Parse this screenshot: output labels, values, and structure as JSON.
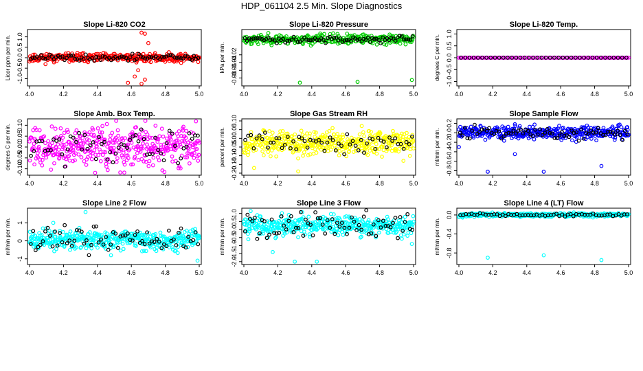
{
  "page_title": "HDP_061104  2.5 Min. Slope Diagnostics",
  "chart_data": [
    {
      "type": "scatter",
      "title": "Slope Li-820 CO2",
      "ylabel": "Licor ppm per min.",
      "xlim": [
        4.0,
        5.0
      ],
      "xticks": [
        "4.0",
        "4.2",
        "4.4",
        "4.6",
        "4.8",
        "5.0"
      ],
      "ylim": [
        -1.25,
        1.25
      ],
      "yticks": [
        "-1.0",
        "-0.5",
        "0.0",
        "0.5",
        "1.0"
      ],
      "ytick_values": [
        -1,
        -0.5,
        0,
        0.5,
        1
      ],
      "color": "#ff0000",
      "center": 0.0,
      "spread": 0.1,
      "black_spread": 0.08,
      "count": 320,
      "black_count": 80,
      "seed": 11,
      "outliers": [
        [
          4.66,
          1.2
        ],
        [
          4.68,
          1.15
        ],
        [
          4.62,
          -0.9
        ],
        [
          4.68,
          -1.05
        ],
        [
          4.64,
          -0.6
        ],
        [
          4.58,
          -1.2
        ],
        [
          4.66,
          -1.25
        ],
        [
          4.7,
          0.7
        ]
      ]
    },
    {
      "type": "scatter",
      "title": "Slope Li-820 Pressure",
      "ylabel": "kPa per min.",
      "xlim": [
        4.0,
        5.0
      ],
      "xticks": [
        "4.0",
        "4.2",
        "4.4",
        "4.6",
        "4.8",
        "5.0"
      ],
      "ylim": [
        -0.095,
        0.04
      ],
      "yticks": [
        "-0.08",
        "-0.06",
        "-0.04",
        "-0.02"
      ],
      "ytick_values": [
        -0.08,
        -0.06,
        -0.04,
        -0.02
      ],
      "color": "#00cc00",
      "center": 0.02,
      "spread": 0.006,
      "black_spread": 0.004,
      "count": 320,
      "black_count": 80,
      "seed": 23,
      "outliers": [
        [
          4.33,
          -0.092
        ],
        [
          4.67,
          -0.09
        ],
        [
          4.99,
          -0.085
        ],
        [
          4.45,
          0.035
        ]
      ]
    },
    {
      "type": "scatter",
      "title": "Slope Li-820 Temp.",
      "ylabel": "degrees C per min.",
      "xlim": [
        4.0,
        5.0
      ],
      "xticks": [
        "4.0",
        "4.2",
        "4.4",
        "4.6",
        "4.8",
        "5.0"
      ],
      "ylim": [
        -1.1,
        1.1
      ],
      "yticks": [
        "-1.0",
        "-0.5",
        "0.0",
        "0.5",
        "1.0"
      ],
      "ytick_values": [
        -1,
        -0.5,
        0,
        0.5,
        1
      ],
      "color": "#ff00ff",
      "center": 0.0,
      "spread": 0.0,
      "black_spread": 0.0,
      "count": 120,
      "black_count": 40,
      "seed": 31,
      "outliers": []
    },
    {
      "type": "scatter",
      "title": "Slope Amb. Box Temp.",
      "ylabel": "degrees C per min.",
      "xlim": [
        4.0,
        5.0
      ],
      "xticks": [
        "4.0",
        "4.2",
        "4.4",
        "4.6",
        "4.8",
        "5.0"
      ],
      "ylim": [
        -0.12,
        0.12
      ],
      "yticks": [
        "-0.10",
        "-0.05",
        "0.00",
        "0.05",
        "0.10"
      ],
      "ytick_values": [
        -0.1,
        -0.05,
        0,
        0.05,
        0.1
      ],
      "color": "#ff00ff",
      "center": 0.0,
      "spread": 0.045,
      "black_spread": 0.04,
      "count": 420,
      "black_count": 60,
      "seed": 41,
      "outliers": []
    },
    {
      "type": "scatter",
      "title": "Slope Gas Stream RH",
      "ylabel": "percent per min.",
      "xlim": [
        4.0,
        5.0
      ],
      "xticks": [
        "4.0",
        "4.2",
        "4.4",
        "4.6",
        "4.8",
        "5.0"
      ],
      "ylim": [
        -0.2,
        0.1
      ],
      "yticks": [
        "-0.20",
        "-0.15",
        "-0.10",
        "-0.05",
        "0.00",
        "0.05",
        "0.10"
      ],
      "ytick_values": [
        -0.2,
        -0.15,
        -0.1,
        -0.05,
        0,
        0.05,
        0.1
      ],
      "color": "#ffff00",
      "center": -0.025,
      "spread": 0.035,
      "black_spread": 0.03,
      "count": 420,
      "black_count": 60,
      "seed": 53,
      "outliers": [
        [
          4.32,
          -0.19
        ],
        [
          4.06,
          -0.17
        ]
      ]
    },
    {
      "type": "scatter",
      "title": "Slope Sample Flow",
      "ylabel": "ml/min per min.",
      "xlim": [
        4.0,
        5.0
      ],
      "xticks": [
        "4.0",
        "4.2",
        "4.4",
        "4.6",
        "4.8",
        "5.0"
      ],
      "ylim": [
        -0.85,
        0.25
      ],
      "yticks": [
        "-0.8",
        "-0.6",
        "-0.4",
        "-0.2",
        "0.0",
        "0.2"
      ],
      "ytick_values": [
        -0.8,
        -0.6,
        -0.4,
        -0.2,
        0,
        0.2
      ],
      "color": "#0000ff",
      "center": 0.0,
      "spread": 0.07,
      "black_spread": 0.06,
      "count": 380,
      "black_count": 70,
      "seed": 61,
      "outliers": [
        [
          4.33,
          0.18
        ],
        [
          4.33,
          -0.45
        ],
        [
          4.17,
          -0.82
        ],
        [
          4.5,
          -0.82
        ],
        [
          4.84,
          -0.7
        ],
        [
          4.0,
          -0.3
        ]
      ]
    },
    {
      "type": "scatter",
      "title": "Slope Line 2 Flow",
      "ylabel": "ml/min per min.",
      "xlim": [
        4.0,
        5.0
      ],
      "xticks": [
        "4.0",
        "4.2",
        "4.4",
        "4.6",
        "4.8",
        "5.0"
      ],
      "ylim": [
        -1.2,
        1.7
      ],
      "yticks": [
        "-1",
        "0",
        "1"
      ],
      "ytick_values": [
        -1,
        0,
        1
      ],
      "color": "#00ffff",
      "center": 0.05,
      "spread": 0.25,
      "black_spread": 0.35,
      "count": 420,
      "black_count": 70,
      "seed": 71,
      "outliers": [
        [
          4.33,
          1.6
        ],
        [
          4.99,
          -1.1
        ],
        [
          4.14,
          1.0
        ],
        [
          4.48,
          -0.8
        ]
      ]
    },
    {
      "type": "scatter",
      "title": "Slope Line 3 Flow",
      "ylabel": "ml/min per min.",
      "xlim": [
        4.0,
        5.0
      ],
      "xticks": [
        "4.0",
        "4.2",
        "4.4",
        "4.6",
        "4.8",
        "5.0"
      ],
      "ylim": [
        -2.05,
        1.2
      ],
      "yticks": [
        "-2.0",
        "-1.5",
        "-1.0",
        "-0.5",
        "0.0",
        "0.5",
        "1.0"
      ],
      "ytick_values": [
        -2,
        -1.5,
        -1,
        -0.5,
        0,
        0.5,
        1
      ],
      "color": "#00ffff",
      "center": 0.25,
      "spread": 0.3,
      "black_spread": 0.45,
      "count": 420,
      "black_count": 70,
      "seed": 83,
      "outliers": [
        [
          4.3,
          -2.0
        ],
        [
          4.43,
          -2.0
        ],
        [
          4.04,
          1.15
        ],
        [
          4.17,
          -1.4
        ],
        [
          4.99,
          -0.9
        ]
      ]
    },
    {
      "type": "scatter",
      "title": "Slope Line 4 (LT) Flow",
      "ylabel": "ml/min per min.",
      "xlim": [
        4.0,
        5.0
      ],
      "xticks": [
        "4.0",
        "4.2",
        "4.4",
        "4.6",
        "4.8",
        "5.0"
      ],
      "ylim": [
        -1.0,
        0.1
      ],
      "yticks": [
        "-0.8",
        "-0.4",
        "0.0"
      ],
      "ytick_values": [
        -0.8,
        -0.4,
        0
      ],
      "color": "#00ffff",
      "center": 0.0,
      "spread": 0.02,
      "black_spread": 0.015,
      "count": 320,
      "black_count": 60,
      "seed": 97,
      "outliers": [
        [
          4.17,
          -0.9
        ],
        [
          4.5,
          -0.85
        ],
        [
          4.84,
          -0.95
        ]
      ]
    }
  ]
}
